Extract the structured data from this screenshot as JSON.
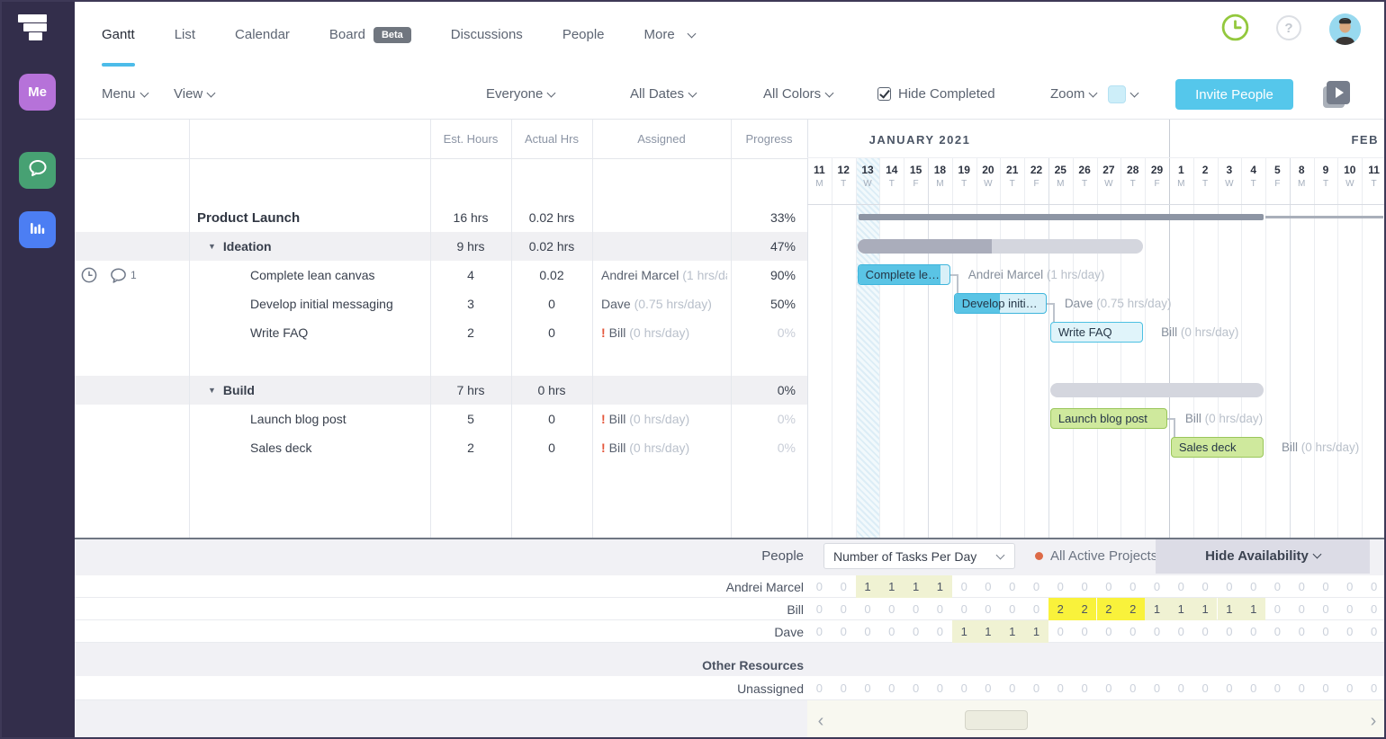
{
  "nav": {
    "tabs": [
      "Gantt",
      "List",
      "Calendar",
      "Board",
      "Discussions",
      "People",
      "More"
    ],
    "active_tab": "Gantt",
    "beta_badge": "Beta"
  },
  "sidebar": {
    "me_label": "Me"
  },
  "toolbar": {
    "menu": "Menu",
    "view": "View",
    "everyone": "Everyone",
    "all_dates": "All Dates",
    "all_colors": "All Colors",
    "hide_completed": "Hide Completed",
    "zoom": "Zoom",
    "zoom_color": "#cdeef9",
    "invite": "Invite People"
  },
  "table": {
    "columns": [
      "Est. Hours",
      "Actual Hrs",
      "Assigned",
      "Progress"
    ],
    "rows": [
      {
        "type": "project",
        "name": "Product Launch",
        "est": "16 hrs",
        "actual": "0.02 hrs",
        "progress": "33%",
        "muted": false
      },
      {
        "type": "group",
        "name": "Ideation",
        "est": "9 hrs",
        "actual": "0.02 hrs",
        "progress": "47%",
        "muted": false
      },
      {
        "type": "task",
        "name": "Complete lean canvas",
        "est": "4",
        "actual": "0.02",
        "assignee": "Andrei Marcel",
        "rate": "(1 hrs/day)",
        "alert": false,
        "progress": "90%",
        "muted": false,
        "icons": {
          "clock": true,
          "comments": "1"
        }
      },
      {
        "type": "task",
        "name": "Develop initial messaging",
        "est": "3",
        "actual": "0",
        "assignee": "Dave",
        "rate": "(0.75 hrs/day)",
        "alert": false,
        "progress": "50%",
        "muted": false
      },
      {
        "type": "task",
        "name": "Write FAQ",
        "est": "2",
        "actual": "0",
        "assignee": "Bill",
        "rate": "(0 hrs/day)",
        "alert": true,
        "progress": "0%",
        "muted": true
      },
      {
        "type": "empty"
      },
      {
        "type": "group",
        "name": "Build",
        "est": "7 hrs",
        "actual": "0 hrs",
        "progress": "0%",
        "muted": false
      },
      {
        "type": "task",
        "name": "Launch blog post",
        "est": "5",
        "actual": "0",
        "assignee": "Bill",
        "rate": "(0 hrs/day)",
        "alert": true,
        "progress": "0%",
        "muted": true
      },
      {
        "type": "task",
        "name": "Sales deck",
        "est": "2",
        "actual": "0",
        "assignee": "Bill",
        "rate": "(0 hrs/day)",
        "alert": true,
        "progress": "0%",
        "muted": true
      }
    ]
  },
  "gantt": {
    "months": [
      {
        "label": "JANUARY 2021",
        "span": [
          0,
          14
        ]
      },
      {
        "label": "FEB",
        "span": [
          15,
          23
        ]
      }
    ],
    "days": [
      {
        "num": "11",
        "dow": "M"
      },
      {
        "num": "12",
        "dow": "T"
      },
      {
        "num": "13",
        "dow": "W"
      },
      {
        "num": "14",
        "dow": "T"
      },
      {
        "num": "15",
        "dow": "F"
      },
      {
        "num": "18",
        "dow": "M"
      },
      {
        "num": "19",
        "dow": "T"
      },
      {
        "num": "20",
        "dow": "W"
      },
      {
        "num": "21",
        "dow": "T"
      },
      {
        "num": "22",
        "dow": "F"
      },
      {
        "num": "25",
        "dow": "M"
      },
      {
        "num": "26",
        "dow": "T"
      },
      {
        "num": "27",
        "dow": "W"
      },
      {
        "num": "28",
        "dow": "T"
      },
      {
        "num": "29",
        "dow": "F"
      },
      {
        "num": "1",
        "dow": "M"
      },
      {
        "num": "2",
        "dow": "T"
      },
      {
        "num": "3",
        "dow": "W"
      },
      {
        "num": "4",
        "dow": "T"
      },
      {
        "num": "5",
        "dow": "F"
      },
      {
        "num": "8",
        "dow": "M"
      },
      {
        "num": "9",
        "dow": "T"
      },
      {
        "num": "10",
        "dow": "W"
      },
      {
        "num": "11",
        "dow": "T"
      }
    ],
    "today_index": 2,
    "bars": [
      {
        "row": 0,
        "start": 2,
        "end": 18,
        "kind": "project",
        "name": "Product Launch",
        "overflow_right": true
      },
      {
        "row": 1,
        "start": 2,
        "end": 13,
        "kind": "group",
        "name": "Ideation",
        "fill": 47
      },
      {
        "row": 2,
        "start": 2,
        "end": 5,
        "kind": "blue",
        "fill": 90,
        "label": "Complete le…",
        "who": "Andrei Marcel",
        "rate": "(1 hrs/day)",
        "connect_to_next": true
      },
      {
        "row": 3,
        "start": 6,
        "end": 9,
        "kind": "blue",
        "fill": 50,
        "label": "Develop initi…",
        "who": "Dave",
        "rate": "(0.75 hrs/day)",
        "connect_to_next": true
      },
      {
        "row": 4,
        "start": 10,
        "end": 13,
        "kind": "blue0",
        "fill": 0,
        "label": "Write FAQ",
        "who": "Bill",
        "rate": "(0 hrs/day)"
      },
      {
        "row": 6,
        "start": 10,
        "end": 18,
        "kind": "group",
        "name": "Build",
        "fill": 0
      },
      {
        "row": 7,
        "start": 10,
        "end": 14,
        "kind": "green",
        "fill": 0,
        "label": "Launch blog post",
        "who": "Bill",
        "rate": "(0 hrs/day)",
        "connect_to_next": true
      },
      {
        "row": 8,
        "start": 15,
        "end": 18,
        "kind": "green",
        "fill": 0,
        "label": "Sales deck",
        "who": "Bill",
        "rate": "(0 hrs/day)"
      }
    ]
  },
  "availability": {
    "people_header": "People",
    "tasks_dropdown": "Number of Tasks Per Day",
    "projects_filter": "All Active Projects",
    "hide_label": "Hide Availability",
    "rows": [
      {
        "name": "Andrei Marcel",
        "values": [
          0,
          0,
          1,
          1,
          1,
          1,
          0,
          0,
          0,
          0,
          0,
          0,
          0,
          0,
          0,
          0,
          0,
          0,
          0,
          0,
          0,
          0,
          0,
          0
        ]
      },
      {
        "name": "Bill",
        "values": [
          0,
          0,
          0,
          0,
          0,
          0,
          0,
          0,
          0,
          0,
          2,
          2,
          2,
          2,
          1,
          1,
          1,
          1,
          1,
          0,
          0,
          0,
          0,
          0
        ]
      },
      {
        "name": "Dave",
        "values": [
          0,
          0,
          0,
          0,
          0,
          0,
          1,
          1,
          1,
          1,
          0,
          0,
          0,
          0,
          0,
          0,
          0,
          0,
          0,
          0,
          0,
          0,
          0,
          0
        ]
      }
    ],
    "other_header": "Other Resources",
    "unassigned": {
      "name": "Unassigned",
      "values": [
        0,
        0,
        0,
        0,
        0,
        0,
        0,
        0,
        0,
        0,
        0,
        0,
        0,
        0,
        0,
        0,
        0,
        0,
        0,
        0,
        0,
        0,
        0,
        0
      ]
    }
  }
}
